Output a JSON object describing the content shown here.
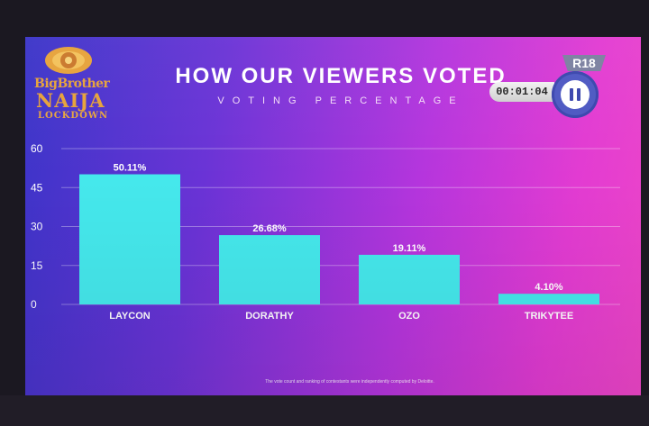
{
  "logo": {
    "line1": "BigBrother",
    "line2": "NAIJA",
    "line3": "LOCKDOWN"
  },
  "header": {
    "title": "HOW OUR VIEWERS VOTED",
    "subtitle": "VOTING PERCENTAGE"
  },
  "player": {
    "timer": "00:01:04",
    "rating": "R18",
    "pause_icon": "pause-icon"
  },
  "footnote": "The vote count and ranking of contestants were independently computed by Deloitte.",
  "colors": {
    "bar": "#45e8ec",
    "label": "#ffffff",
    "grid": "rgba(255,255,255,0.35)",
    "logo": "#e6a23a"
  },
  "chart_data": {
    "type": "bar",
    "title": "HOW OUR VIEWERS VOTED",
    "subtitle": "VOTING PERCENTAGE",
    "categories": [
      "LAYCON",
      "DORATHY",
      "OZO",
      "TRIKYTEE"
    ],
    "values": [
      50.11,
      26.68,
      19.11,
      4.1
    ],
    "value_labels": [
      "50.11%",
      "26.68%",
      "19.11%",
      "4.10%"
    ],
    "ylim": [
      0,
      60
    ],
    "yticks": [
      0,
      15,
      30,
      45,
      60
    ],
    "grid": true,
    "legend": "none",
    "xlabel": "",
    "ylabel": ""
  }
}
